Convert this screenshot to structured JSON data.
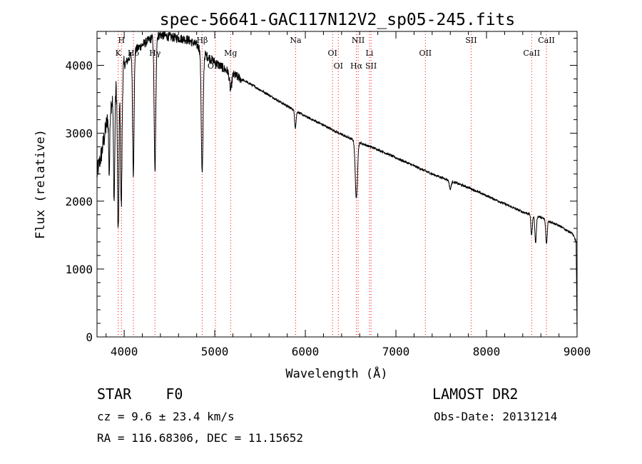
{
  "chart_data": {
    "type": "line",
    "title": "spec-56641-GAC117N12V2_sp05-245.fits",
    "xlabel": "Wavelength (Å)",
    "ylabel": "Flux (relative)",
    "xlim": [
      3700,
      9000
    ],
    "ylim": [
      0,
      4500
    ],
    "xticks": [
      "4000",
      "5000",
      "6000",
      "7000",
      "8000",
      "9000"
    ],
    "xtick_values": [
      4000,
      5000,
      6000,
      7000,
      8000,
      9000
    ],
    "yticks": [
      "0",
      "1000",
      "2000",
      "3000",
      "4000"
    ],
    "ytick_values": [
      0,
      1000,
      2000,
      3000,
      4000
    ],
    "continuum": {
      "x": [
        3700,
        3750,
        3800,
        3850,
        3900,
        3950,
        4000,
        4100,
        4200,
        4300,
        4400,
        4500,
        4600,
        4700,
        4800,
        4900,
        5000,
        5100,
        5200,
        5300,
        5400,
        5500,
        5600,
        5800,
        6000,
        6200,
        6400,
        6500,
        6600,
        6800,
        7000,
        7200,
        7400,
        7600,
        7800,
        8000,
        8200,
        8400,
        8600,
        8800,
        8950,
        8990,
        9000
      ],
      "y": [
        2400,
        2700,
        3100,
        3400,
        3650,
        3850,
        4000,
        4200,
        4300,
        4400,
        4450,
        4420,
        4400,
        4380,
        4300,
        4150,
        4050,
        3950,
        3870,
        3790,
        3720,
        3640,
        3560,
        3400,
        3250,
        3120,
        2980,
        2920,
        2860,
        2760,
        2640,
        2520,
        2400,
        2300,
        2200,
        2080,
        1960,
        1840,
        1760,
        1640,
        1520,
        1400,
        0
      ]
    },
    "absorption_lines": [
      {
        "center": 3835,
        "depth": 900,
        "width": 6
      },
      {
        "center": 3889,
        "depth": 1600,
        "width": 7
      },
      {
        "center": 3934,
        "depth": 2300,
        "width": 8
      },
      {
        "center": 3968,
        "depth": 2000,
        "width": 8
      },
      {
        "center": 4101,
        "depth": 1800,
        "width": 8
      },
      {
        "center": 4340,
        "depth": 2000,
        "width": 9
      },
      {
        "center": 4861,
        "depth": 1800,
        "width": 10
      },
      {
        "center": 5175,
        "depth": 250,
        "width": 12
      },
      {
        "center": 5890,
        "depth": 250,
        "width": 8
      },
      {
        "center": 6563,
        "depth": 850,
        "width": 12
      },
      {
        "center": 7600,
        "depth": 120,
        "width": 10
      },
      {
        "center": 8498,
        "depth": 300,
        "width": 8
      },
      {
        "center": 8542,
        "depth": 400,
        "width": 8
      },
      {
        "center": 8662,
        "depth": 350,
        "width": 8
      }
    ],
    "line_markers": [
      {
        "label": "H",
        "wavelength": 3970,
        "row": 0
      },
      {
        "label": "K",
        "wavelength": 3934,
        "row": 1
      },
      {
        "label": "Hδ",
        "wavelength": 4102,
        "row": 1
      },
      {
        "label": "Hγ",
        "wavelength": 4340,
        "row": 1
      },
      {
        "label": "Hβ",
        "wavelength": 4861,
        "row": 0
      },
      {
        "label": "Mg",
        "wavelength": 5175,
        "row": 1
      },
      {
        "label": "OIII",
        "wavelength": 5007,
        "row": 2
      },
      {
        "label": "Na",
        "wavelength": 5893,
        "row": 0
      },
      {
        "label": "NII",
        "wavelength": 6583,
        "row": 0
      },
      {
        "label": "OI",
        "wavelength": 6300,
        "row": 1
      },
      {
        "label": "OI",
        "wavelength": 6364,
        "row": 2
      },
      {
        "label": "Li",
        "wavelength": 6708,
        "row": 1
      },
      {
        "label": "Hα",
        "wavelength": 6563,
        "row": 2
      },
      {
        "label": "SII",
        "wavelength": 6725,
        "row": 2
      },
      {
        "label": "OII",
        "wavelength": 7325,
        "row": 1
      },
      {
        "label": "SII",
        "wavelength": 7830,
        "row": 0
      },
      {
        "label": "CaII",
        "wavelength": 8498,
        "row": 1
      },
      {
        "label": "CaII",
        "wavelength": 8662,
        "row": 0
      }
    ],
    "marker_line_color": "#ff0000",
    "line_color": "#000000"
  },
  "info": {
    "class_label": "STAR",
    "subclass": "F0",
    "survey": "LAMOST DR2",
    "cz": "cz = 9.6 ± 23.4 km/s",
    "obs_date": "Obs-Date: 20131214",
    "coords": "RA = 116.68306, DEC =  11.15652"
  }
}
